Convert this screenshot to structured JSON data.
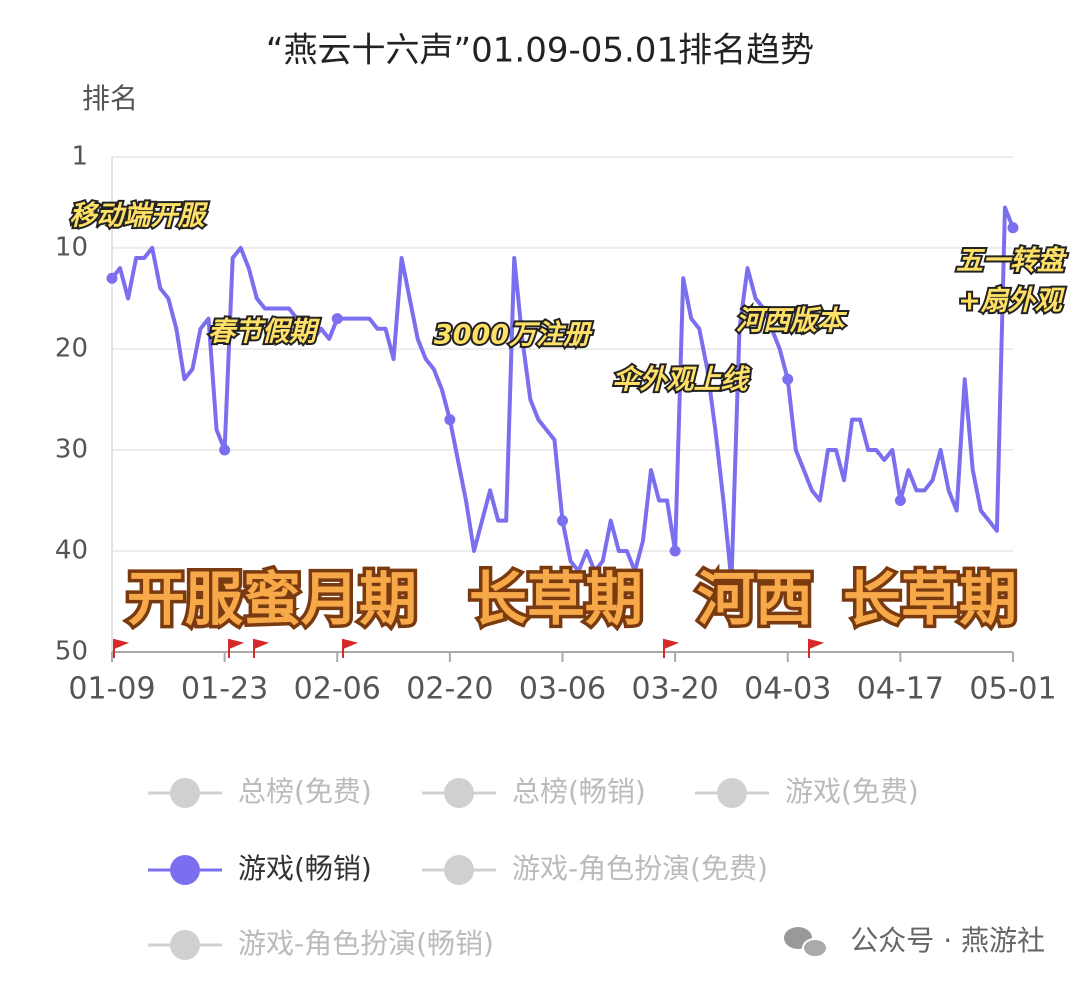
{
  "chart_data": {
    "type": "line",
    "title": "“燕云十六声”01.09-05.01排名趋势",
    "y_label": "排名",
    "y_inverted": true,
    "ylim": [
      1,
      50
    ],
    "yticks": [
      1,
      10,
      20,
      30,
      40,
      50
    ],
    "grid": true,
    "x": [
      "01-09",
      "01-10",
      "01-11",
      "01-12",
      "01-13",
      "01-14",
      "01-15",
      "01-16",
      "01-17",
      "01-18",
      "01-19",
      "01-20",
      "01-21",
      "01-22",
      "01-23",
      "01-24",
      "01-25",
      "01-26",
      "01-27",
      "01-28",
      "01-29",
      "01-30",
      "01-31",
      "02-01",
      "02-02",
      "02-03",
      "02-04",
      "02-05",
      "02-06",
      "02-07",
      "02-08",
      "02-09",
      "02-10",
      "02-11",
      "02-12",
      "02-13",
      "02-14",
      "02-15",
      "02-16",
      "02-17",
      "02-18",
      "02-19",
      "02-20",
      "02-21",
      "02-22",
      "02-23",
      "02-24",
      "02-25",
      "02-26",
      "02-27",
      "02-28",
      "03-01",
      "03-02",
      "03-03",
      "03-04",
      "03-05",
      "03-06",
      "03-07",
      "03-08",
      "03-09",
      "03-10",
      "03-11",
      "03-12",
      "03-13",
      "03-14",
      "03-15",
      "03-16",
      "03-17",
      "03-18",
      "03-19",
      "03-20",
      "03-21",
      "03-22",
      "03-23",
      "03-24",
      "03-25",
      "03-26",
      "03-27",
      "03-28",
      "03-29",
      "03-30",
      "03-31",
      "04-01",
      "04-02",
      "04-03",
      "04-04",
      "04-05",
      "04-06",
      "04-07",
      "04-08",
      "04-09",
      "04-10",
      "04-11",
      "04-12",
      "04-13",
      "04-14",
      "04-15",
      "04-16",
      "04-17",
      "04-18",
      "04-19",
      "04-20",
      "04-21",
      "04-22",
      "04-23",
      "04-24",
      "04-25",
      "04-26",
      "04-27",
      "04-28",
      "04-29",
      "04-30",
      "05-01"
    ],
    "xticks": [
      "01-09",
      "01-23",
      "02-06",
      "02-20",
      "03-06",
      "03-20",
      "04-03",
      "04-17",
      "05-01"
    ],
    "series": [
      {
        "name": "总榜(免费)",
        "visible": false
      },
      {
        "name": "总榜(畅销)",
        "visible": false
      },
      {
        "name": "游戏(免费)",
        "visible": false
      },
      {
        "name": "游戏(畅销)",
        "visible": true,
        "color": "#7b6ff0",
        "values": [
          13,
          12,
          15,
          11,
          11,
          10,
          14,
          15,
          18,
          23,
          22,
          18,
          17,
          28,
          30,
          11,
          10,
          12,
          15,
          16,
          16,
          16,
          16,
          17,
          18,
          19,
          18,
          19,
          17,
          17,
          17,
          17,
          17,
          18,
          18,
          21,
          11,
          15,
          19,
          21,
          22,
          24,
          27,
          31,
          35,
          40,
          37,
          34,
          37,
          37,
          11,
          19,
          25,
          27,
          28,
          29,
          37,
          41,
          42,
          40,
          42,
          41,
          37,
          40,
          40,
          42,
          39,
          32,
          35,
          35,
          40,
          13,
          17,
          18,
          22,
          28,
          35,
          43,
          18,
          12,
          15,
          16,
          18,
          20,
          23,
          30,
          32,
          34,
          35,
          30,
          30,
          33,
          27,
          27,
          30,
          30,
          31,
          30,
          35,
          32,
          34,
          34,
          33,
          30,
          34,
          36,
          23,
          32,
          36,
          37,
          38,
          6,
          8
        ]
      },
      {
        "name": "游戏-角色扮演(免费)",
        "visible": false
      },
      {
        "name": "游戏-角色扮演(畅销)",
        "visible": false
      }
    ],
    "annotations": [
      {
        "text": "移动端开服"
      },
      {
        "text": "春节假期"
      },
      {
        "text": "3000万注册"
      },
      {
        "text": "伞外观上线"
      },
      {
        "text": "河西版本"
      },
      {
        "text": "五一转盘"
      },
      {
        "text": "+扇外观"
      }
    ],
    "banners": [
      "开服蜜月期",
      "长草期",
      "河西",
      "长草期"
    ],
    "source": "公众号 · 燕游社"
  }
}
